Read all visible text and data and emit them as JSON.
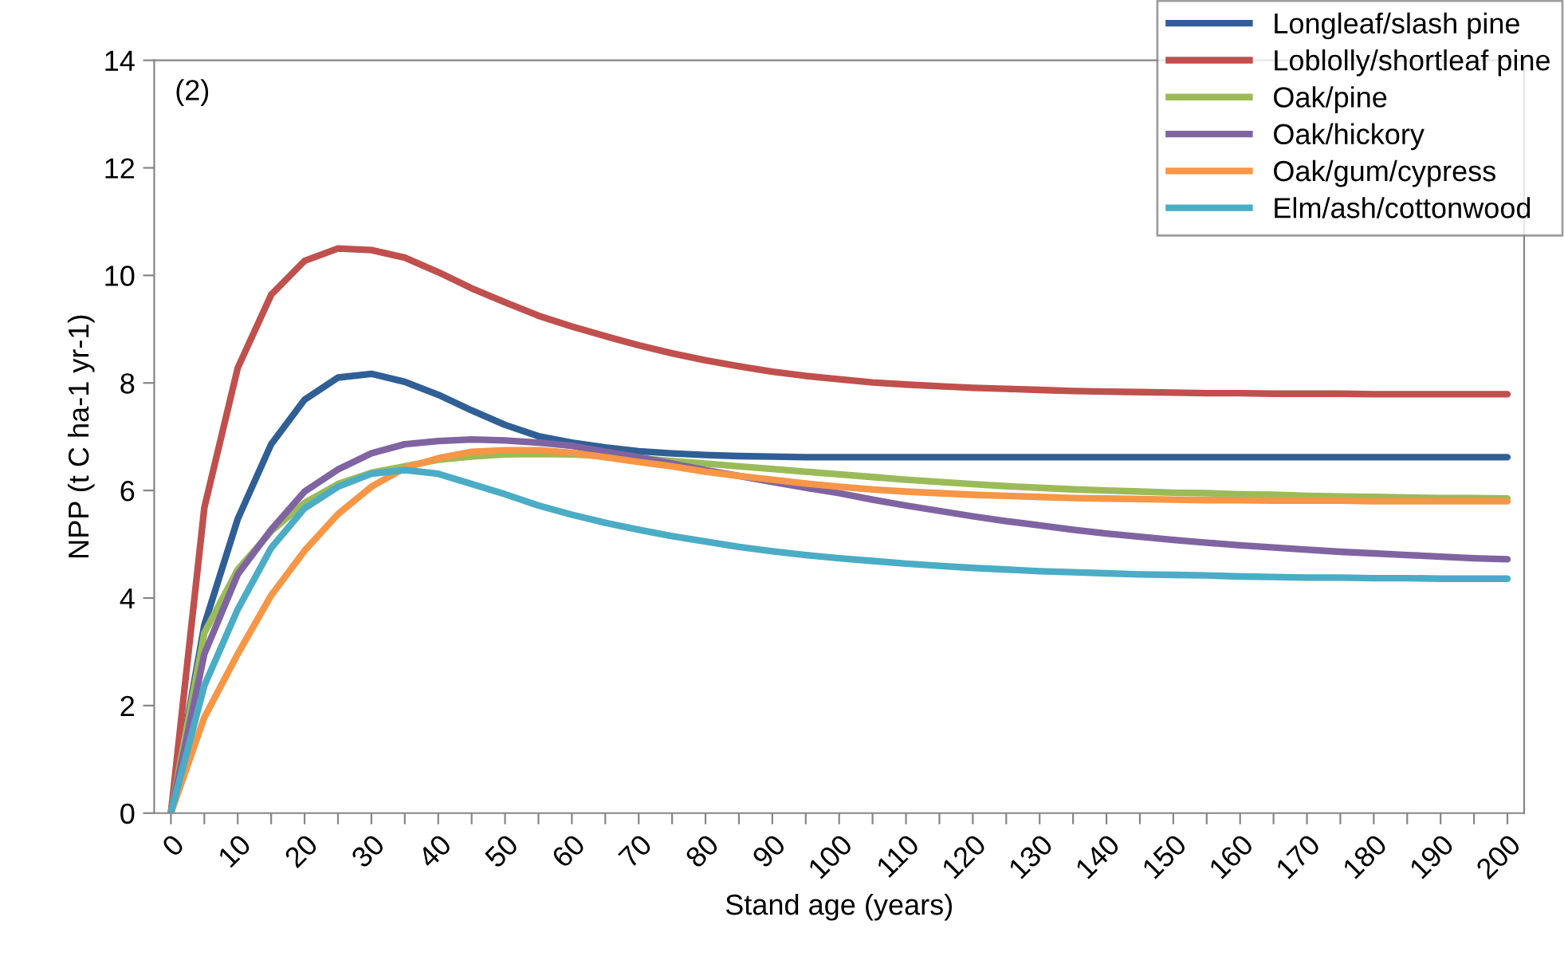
{
  "chart_data": {
    "type": "line",
    "xlabel": "Stand age (years)",
    "ylabel": "NPP (t C ha-1 yr-1)",
    "annotations": [
      "(2)"
    ],
    "categories": [
      "0",
      null,
      "10",
      null,
      "20",
      null,
      "30",
      null,
      "40",
      null,
      "50",
      null,
      "60",
      null,
      "70",
      null,
      "80",
      null,
      "90",
      null,
      "100",
      null,
      "110",
      null,
      "120",
      null,
      "130",
      null,
      "140",
      null,
      "150",
      null,
      "160",
      null,
      "170",
      null,
      "180",
      null,
      "190",
      null,
      "200"
    ],
    "ylim": [
      0,
      14
    ],
    "yticks": [
      0,
      2,
      4,
      6,
      8,
      10,
      12,
      14
    ],
    "grid": false,
    "legend": "top right",
    "marker": "none",
    "line_style": "solid",
    "series": [
      {
        "name": "Longleaf/slash pine",
        "color": "#305f95",
        "values": [
          0,
          3.5,
          5.47,
          6.86,
          7.69,
          8.1,
          8.17,
          8.02,
          7.78,
          7.49,
          7.22,
          7.01,
          6.89,
          6.8,
          6.73,
          6.69,
          6.66,
          6.64,
          6.63,
          6.62,
          6.62,
          6.62,
          6.62,
          6.62,
          6.62,
          6.62,
          6.62,
          6.62,
          6.62,
          6.62,
          6.62,
          6.62,
          6.62,
          6.62,
          6.62,
          6.62,
          6.62,
          6.62,
          6.62,
          6.62,
          6.62
        ]
      },
      {
        "name": "Loblolly/shortleaf pine",
        "color": "#c0504d",
        "values": [
          0,
          5.68,
          8.28,
          9.64,
          10.27,
          10.5,
          10.47,
          10.33,
          10.06,
          9.76,
          9.5,
          9.25,
          9.05,
          8.87,
          8.7,
          8.55,
          8.42,
          8.31,
          8.21,
          8.13,
          8.07,
          8.01,
          7.97,
          7.94,
          7.91,
          7.89,
          7.87,
          7.85,
          7.84,
          7.83,
          7.82,
          7.81,
          7.81,
          7.8,
          7.8,
          7.8,
          7.79,
          7.79,
          7.79,
          7.79,
          7.79
        ]
      },
      {
        "name": "Oak/pine",
        "color": "#9bbb59",
        "values": [
          0,
          3.35,
          4.53,
          5.24,
          5.77,
          6.12,
          6.33,
          6.45,
          6.57,
          6.63,
          6.67,
          6.68,
          6.67,
          6.64,
          6.6,
          6.55,
          6.5,
          6.45,
          6.4,
          6.35,
          6.3,
          6.25,
          6.2,
          6.16,
          6.12,
          6.08,
          6.05,
          6.02,
          6.0,
          5.98,
          5.96,
          5.95,
          5.93,
          5.92,
          5.9,
          5.89,
          5.88,
          5.87,
          5.86,
          5.86,
          5.85
        ]
      },
      {
        "name": "Oak/hickory",
        "color": "#8064a2",
        "values": [
          0,
          2.96,
          4.44,
          5.27,
          5.98,
          6.39,
          6.69,
          6.86,
          6.92,
          6.95,
          6.93,
          6.89,
          6.83,
          6.72,
          6.62,
          6.5,
          6.38,
          6.27,
          6.16,
          6.05,
          5.95,
          5.83,
          5.72,
          5.62,
          5.52,
          5.43,
          5.35,
          5.27,
          5.2,
          5.14,
          5.08,
          5.03,
          4.98,
          4.94,
          4.9,
          4.86,
          4.83,
          4.8,
          4.77,
          4.74,
          4.72
        ]
      },
      {
        "name": "Oak/gum/cypress",
        "color": "#f79646",
        "values": [
          0,
          1.78,
          2.96,
          4.05,
          4.88,
          5.56,
          6.07,
          6.42,
          6.6,
          6.72,
          6.75,
          6.75,
          6.7,
          6.62,
          6.53,
          6.45,
          6.35,
          6.27,
          6.2,
          6.13,
          6.07,
          6.02,
          5.98,
          5.95,
          5.92,
          5.9,
          5.88,
          5.86,
          5.85,
          5.84,
          5.83,
          5.82,
          5.82,
          5.81,
          5.81,
          5.81,
          5.8,
          5.8,
          5.8,
          5.8,
          5.8
        ]
      },
      {
        "name": "Elm/ash/cottonwood",
        "color": "#4bacc6",
        "values": [
          0,
          2.37,
          3.79,
          4.93,
          5.67,
          6.07,
          6.31,
          6.38,
          6.31,
          6.12,
          5.93,
          5.72,
          5.55,
          5.4,
          5.27,
          5.15,
          5.05,
          4.95,
          4.87,
          4.8,
          4.74,
          4.69,
          4.64,
          4.6,
          4.56,
          4.53,
          4.5,
          4.48,
          4.46,
          4.44,
          4.43,
          4.42,
          4.4,
          4.39,
          4.38,
          4.38,
          4.37,
          4.37,
          4.36,
          4.36,
          4.36
        ]
      }
    ]
  }
}
